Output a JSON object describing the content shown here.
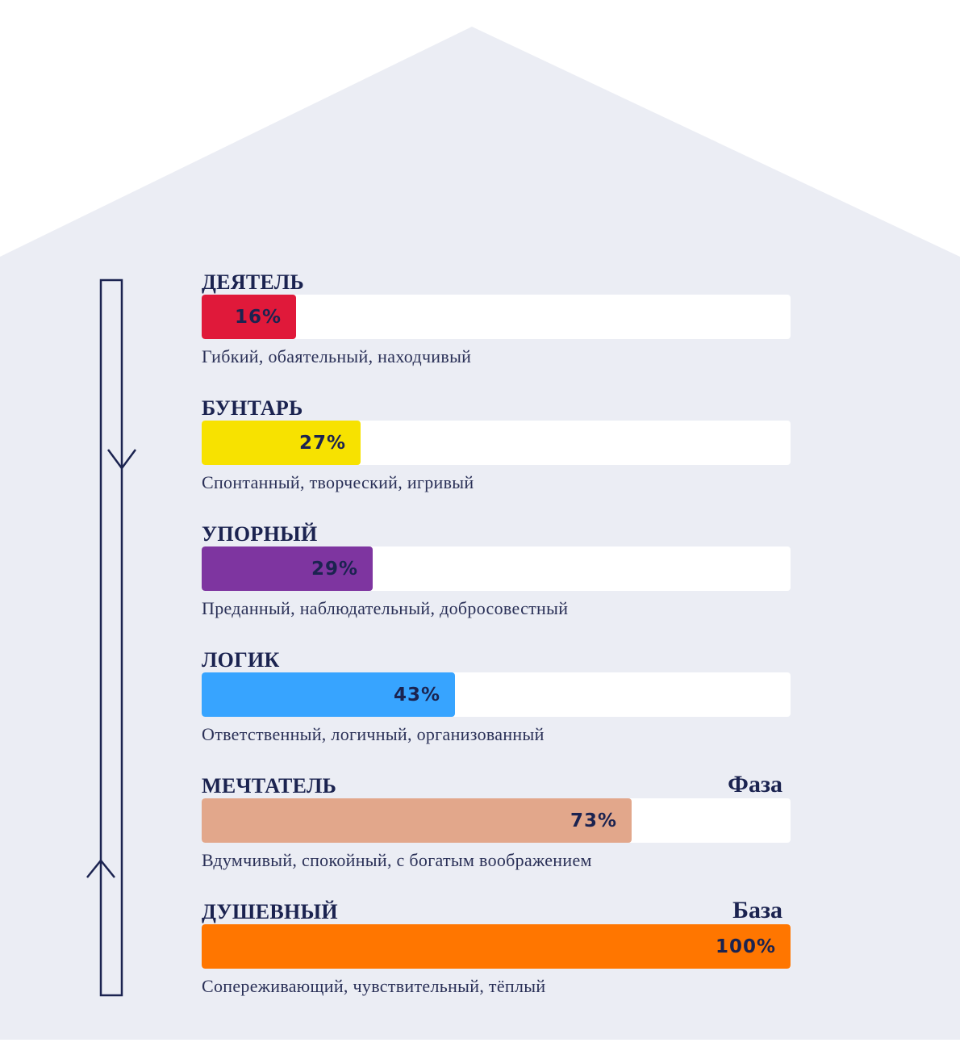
{
  "chart_data": {
    "type": "bar",
    "orientation": "horizontal",
    "xlim": [
      0,
      100
    ],
    "categories": [
      "ДЕЯТЕЛЬ",
      "БУНТАРЬ",
      "УПОРНЫЙ",
      "ЛОГИК",
      "МЕЧТАТЕЛЬ",
      "ДУШЕВНЫЙ"
    ],
    "values": [
      16,
      27,
      29,
      43,
      73,
      100
    ],
    "value_labels": [
      "16%",
      "27%",
      "29%",
      "43%",
      "73%",
      "100%"
    ],
    "descriptions": [
      "Гибкий, обаятельный, находчивый",
      "Спонтанный, творческий, игривый",
      "Преданный, наблюдательный, добросовестный",
      "Ответственный, логичный, организованный",
      "Вдумчивый, спокойный, с богатым воображением",
      "Сопереживающий, чувствительный, тёплый"
    ],
    "tags": [
      "",
      "",
      "",
      "",
      "Фаза",
      "База"
    ],
    "colors": [
      "#e0193a",
      "#f7e200",
      "#7e35a0",
      "#37a4ff",
      "#e2a78b",
      "#ff7600"
    ]
  },
  "colors": {
    "background": "#ebedf4",
    "track": "#ffffff",
    "text": "#1b2350",
    "arrow": "#1b2350"
  }
}
